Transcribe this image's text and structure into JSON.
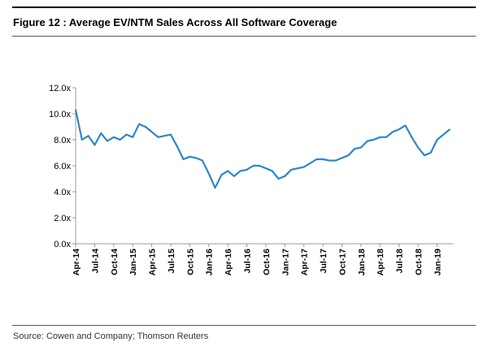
{
  "figure": {
    "title": "Figure 12 : Average EV/NTM Sales Across All Software Coverage",
    "source": "Source: Cowen and Company; Thomson Reuters"
  },
  "colors": {
    "line": "#2E86C8",
    "axis": "#999999",
    "text": "#000000"
  },
  "chart_data": {
    "type": "line",
    "title": "",
    "xlabel": "",
    "ylabel": "",
    "ylim": [
      0,
      12
    ],
    "yticks": [
      "0.0x",
      "2.0x",
      "4.0x",
      "6.0x",
      "8.0x",
      "10.0x",
      "12.0x"
    ],
    "xticks": [
      "Apr-14",
      "Jul-14",
      "Oct-14",
      "Jan-15",
      "Apr-15",
      "Jul-15",
      "Oct-15",
      "Jan-16",
      "Apr-16",
      "Jul-16",
      "Oct-16",
      "Jan-17",
      "Apr-17",
      "Jul-17",
      "Oct-17",
      "Jan-18",
      "Apr-18",
      "Jul-18",
      "Oct-18",
      "Jan-19"
    ],
    "grid": false,
    "legend": "none",
    "series": [
      {
        "name": "",
        "x": [
          "2014-04",
          "2014-05",
          "2014-06",
          "2014-07",
          "2014-08",
          "2014-09",
          "2014-10",
          "2014-11",
          "2014-12",
          "2015-01",
          "2015-02",
          "2015-03",
          "2015-04",
          "2015-05",
          "2015-06",
          "2015-07",
          "2015-08",
          "2015-09",
          "2015-10",
          "2015-11",
          "2015-12",
          "2016-01",
          "2016-02",
          "2016-03",
          "2016-04",
          "2016-05",
          "2016-06",
          "2016-07",
          "2016-08",
          "2016-09",
          "2016-10",
          "2016-11",
          "2016-12",
          "2017-01",
          "2017-02",
          "2017-03",
          "2017-04",
          "2017-05",
          "2017-06",
          "2017-07",
          "2017-08",
          "2017-09",
          "2017-10",
          "2017-11",
          "2017-12",
          "2018-01",
          "2018-02",
          "2018-03",
          "2018-04",
          "2018-05",
          "2018-06",
          "2018-07",
          "2018-08",
          "2018-09",
          "2018-10",
          "2018-11",
          "2018-12",
          "2019-01",
          "2019-02",
          "2019-03"
        ],
        "values": [
          10.3,
          8.0,
          8.3,
          7.6,
          8.5,
          7.9,
          8.2,
          8.0,
          8.4,
          8.2,
          9.2,
          9.0,
          8.6,
          8.2,
          8.3,
          8.4,
          7.5,
          6.5,
          6.7,
          6.6,
          6.4,
          5.4,
          4.3,
          5.3,
          5.6,
          5.2,
          5.6,
          5.7,
          6.0,
          6.0,
          5.8,
          5.6,
          5.0,
          5.2,
          5.7,
          5.8,
          5.9,
          6.2,
          6.5,
          6.5,
          6.4,
          6.4,
          6.6,
          6.8,
          7.3,
          7.4,
          7.9,
          8.0,
          8.2,
          8.2,
          8.6,
          8.8,
          9.1,
          8.2,
          7.4,
          6.8,
          7.0,
          8.0,
          8.4,
          8.8
        ]
      }
    ]
  }
}
